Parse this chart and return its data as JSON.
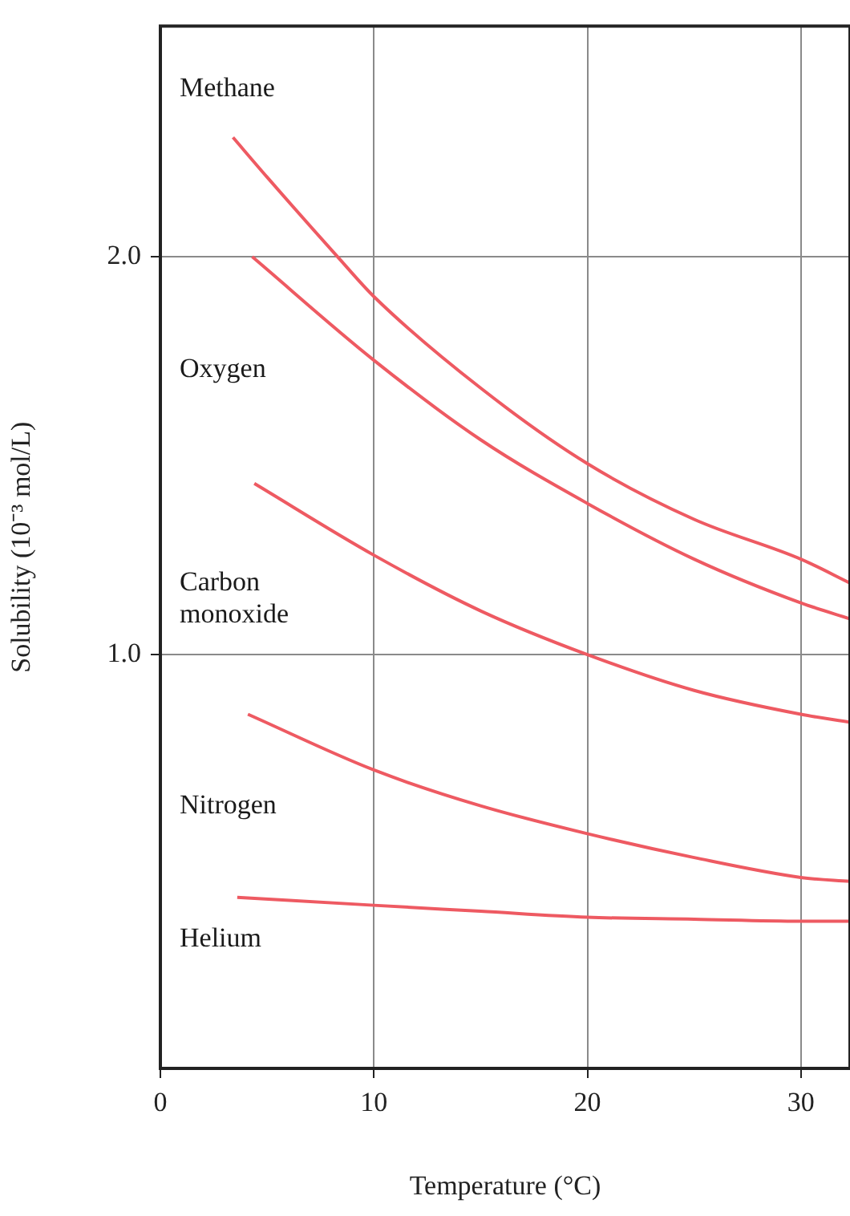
{
  "chart_data": {
    "type": "line",
    "xlabel": "Temperature (°C)",
    "ylabel": "Solubility (10⁻³ mol/L)",
    "xlim": [
      0,
      32.3
    ],
    "xticks": [
      0,
      10,
      20,
      30
    ],
    "ylim": [
      -0.04,
      2.58
    ],
    "yticks": [
      {
        "value": 1,
        "label": "1.0"
      },
      {
        "value": 2,
        "label": "2.0"
      }
    ],
    "grid": true,
    "legend": false,
    "marker": "none",
    "line_style": "solid",
    "series": [
      {
        "name": "Methane",
        "color": "#ee5a62",
        "x": [
          3.4,
          5,
          8.3,
          10,
          15,
          20,
          25,
          30,
          32.3
        ],
        "values": [
          2.3,
          2.2,
          2.0,
          1.9,
          1.67,
          1.48,
          1.34,
          1.24,
          1.18
        ]
      },
      {
        "name": "Oxygen",
        "color": "#ee5a62",
        "x": [
          4.3,
          10,
          15,
          20,
          25,
          30,
          32.3
        ],
        "values": [
          2.0,
          1.74,
          1.54,
          1.38,
          1.24,
          1.13,
          1.09
        ]
      },
      {
        "name": "Carbon\nmonoxide",
        "color": "#ee5a62",
        "x": [
          4.4,
          10,
          15,
          20,
          25,
          30,
          32.3
        ],
        "values": [
          1.43,
          1.25,
          1.11,
          1.0,
          0.91,
          0.85,
          0.83
        ]
      },
      {
        "name": "Nitrogen",
        "color": "#ee5a62",
        "x": [
          4.1,
          10,
          15,
          20,
          25,
          30,
          32.3
        ],
        "values": [
          0.85,
          0.71,
          0.62,
          0.55,
          0.49,
          0.44,
          0.43
        ]
      },
      {
        "name": "Helium",
        "color": "#ee5a62",
        "x": [
          3.6,
          10,
          15,
          20,
          25,
          30,
          32.3
        ],
        "values": [
          0.39,
          0.37,
          0.355,
          0.34,
          0.335,
          0.33,
          0.33
        ]
      }
    ]
  }
}
